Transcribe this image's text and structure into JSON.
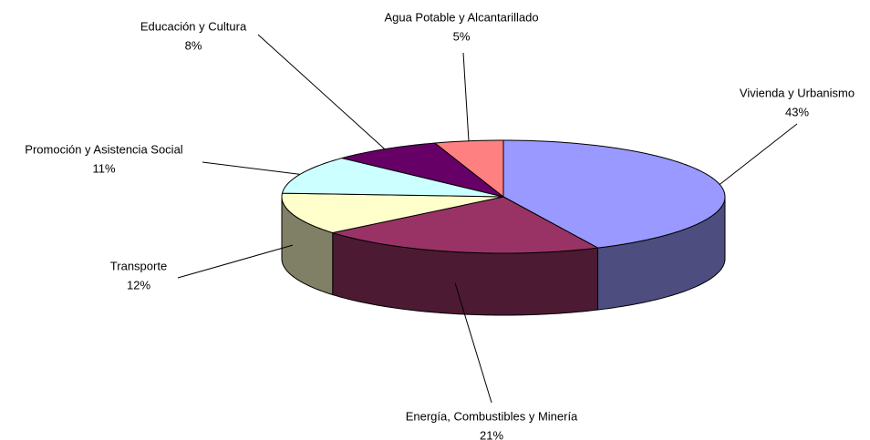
{
  "chart_data": {
    "type": "pie3d",
    "categories": [
      "Vivienda y Urbanismo",
      "Energía, Combustibles y Minería",
      "Transporte",
      "Promoción y Asistencia Social",
      "Educación y Cultura",
      "Agua Potable y Alcantarillado"
    ],
    "values": [
      43,
      21,
      12,
      11,
      8,
      5
    ],
    "value_labels": [
      "43%",
      "21%",
      "12%",
      "11%",
      "8%",
      "5%"
    ],
    "colors": [
      "#9999ff",
      "#993366",
      "#ffffcc",
      "#ccffff",
      "#660066",
      "#ff8080"
    ]
  }
}
